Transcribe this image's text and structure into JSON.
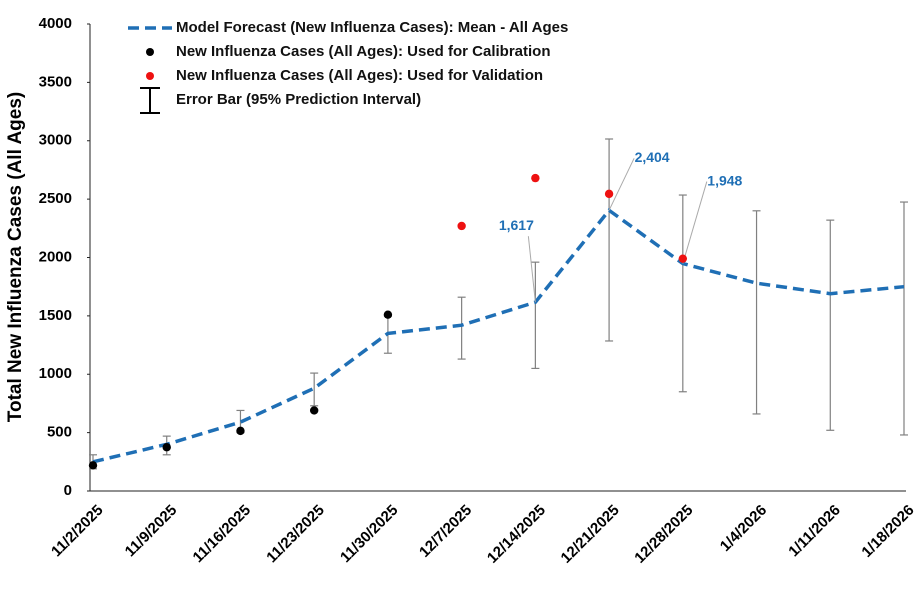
{
  "chart_data": {
    "type": "line",
    "y_label": "Total New Influenza Cases (All Ages)",
    "categories": [
      "11/2/2025",
      "11/9/2025",
      "11/16/2025",
      "11/23/2025",
      "11/30/2025",
      "12/7/2025",
      "12/14/2025",
      "12/21/2025",
      "12/28/2025",
      "1/4/2026",
      "1/11/2026",
      "1/18/2026"
    ],
    "ylim": [
      0,
      4000
    ],
    "yticks": [
      0,
      500,
      1000,
      1500,
      2000,
      2500,
      3000,
      3500,
      4000
    ],
    "grid": false,
    "series": [
      {
        "name": "Model Forecast (New Influenza Cases): Mean - All Ages",
        "style": "dashed-line",
        "color": "#1f6fb5",
        "values": [
          250,
          400,
          590,
          880,
          1350,
          1420,
          1617,
          2404,
          1948,
          1780,
          1690,
          1750
        ],
        "value_labels": [
          null,
          null,
          null,
          null,
          null,
          null,
          "1,617",
          "2,404",
          "1,948",
          null,
          null,
          null
        ]
      },
      {
        "name": "New Influenza Cases (All Ages): Used for Calibration",
        "style": "markers",
        "color": "#000000",
        "values": [
          220,
          375,
          515,
          690,
          1510,
          null,
          null,
          null,
          null,
          null,
          null,
          null
        ]
      },
      {
        "name": "New Influenza Cases (All Ages): Used for Validation",
        "style": "markers",
        "color": "#ee1111",
        "values": [
          null,
          null,
          null,
          null,
          null,
          2270,
          2680,
          2545,
          1990,
          null,
          null,
          null
        ]
      },
      {
        "name": "Error Bar (95% Prediction Interval)",
        "style": "error-bar",
        "color": "#808080",
        "lower": [
          190,
          310,
          500,
          730,
          1180,
          1130,
          1050,
          1285,
          850,
          660,
          520,
          480
        ],
        "upper": [
          310,
          470,
          690,
          1010,
          1500,
          1660,
          1960,
          3015,
          2535,
          2400,
          2320,
          2475
        ]
      }
    ]
  }
}
